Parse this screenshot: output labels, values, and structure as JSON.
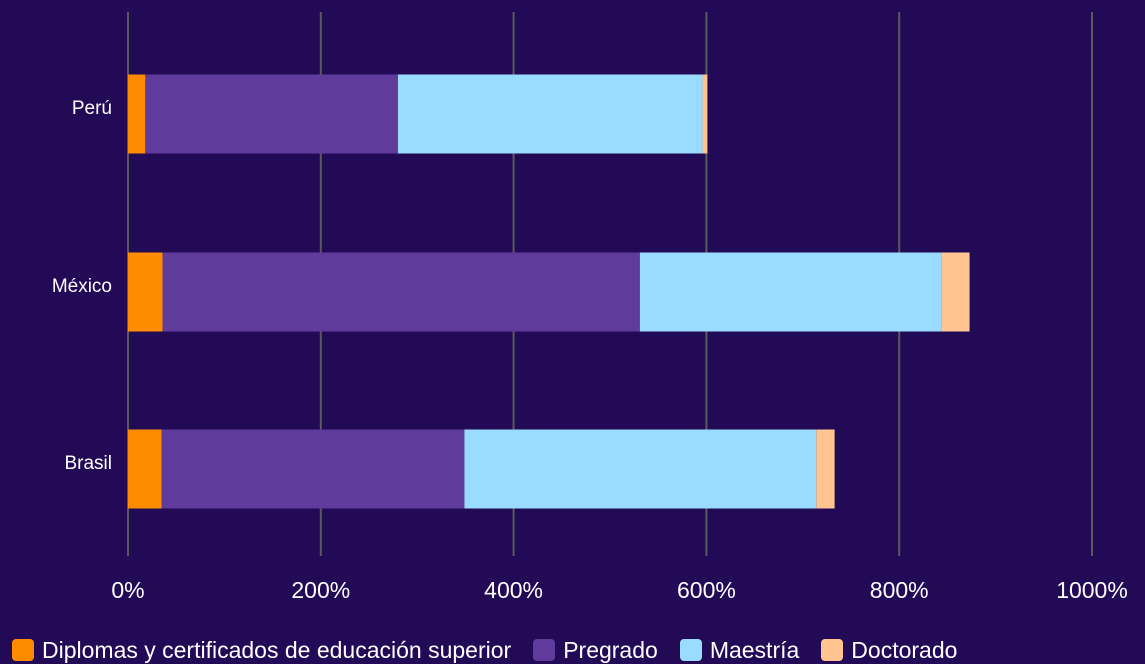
{
  "chart_data": {
    "type": "bar",
    "orientation": "horizontal",
    "stacked": true,
    "title": "",
    "xlabel": "",
    "ylabel": "",
    "categories": [
      "Perú",
      "México",
      "Brasil"
    ],
    "series": [
      {
        "name": "Diplomas y certificados de educación superior",
        "color": "#ff8c00",
        "values": [
          18,
          36,
          35
        ]
      },
      {
        "name": "Pregrado",
        "color": "#5f3b9c",
        "values": [
          262,
          495,
          314
        ]
      },
      {
        "name": "Maestría",
        "color": "#99dcff",
        "values": [
          316,
          313,
          365
        ]
      },
      {
        "name": "Doctorado",
        "color": "#ffc490",
        "values": [
          5,
          29,
          19
        ]
      }
    ],
    "xlim": [
      0,
      1000
    ],
    "x_ticks": [
      0,
      200,
      400,
      600,
      800,
      1000
    ],
    "x_tick_labels": [
      "0%",
      "200%",
      "400%",
      "600%",
      "800%",
      "1000%"
    ],
    "grid": true,
    "legend_position": "bottom"
  },
  "colors": {
    "background": "#220a56",
    "gridline": "#5a5a5a",
    "text": "#ffffff"
  }
}
